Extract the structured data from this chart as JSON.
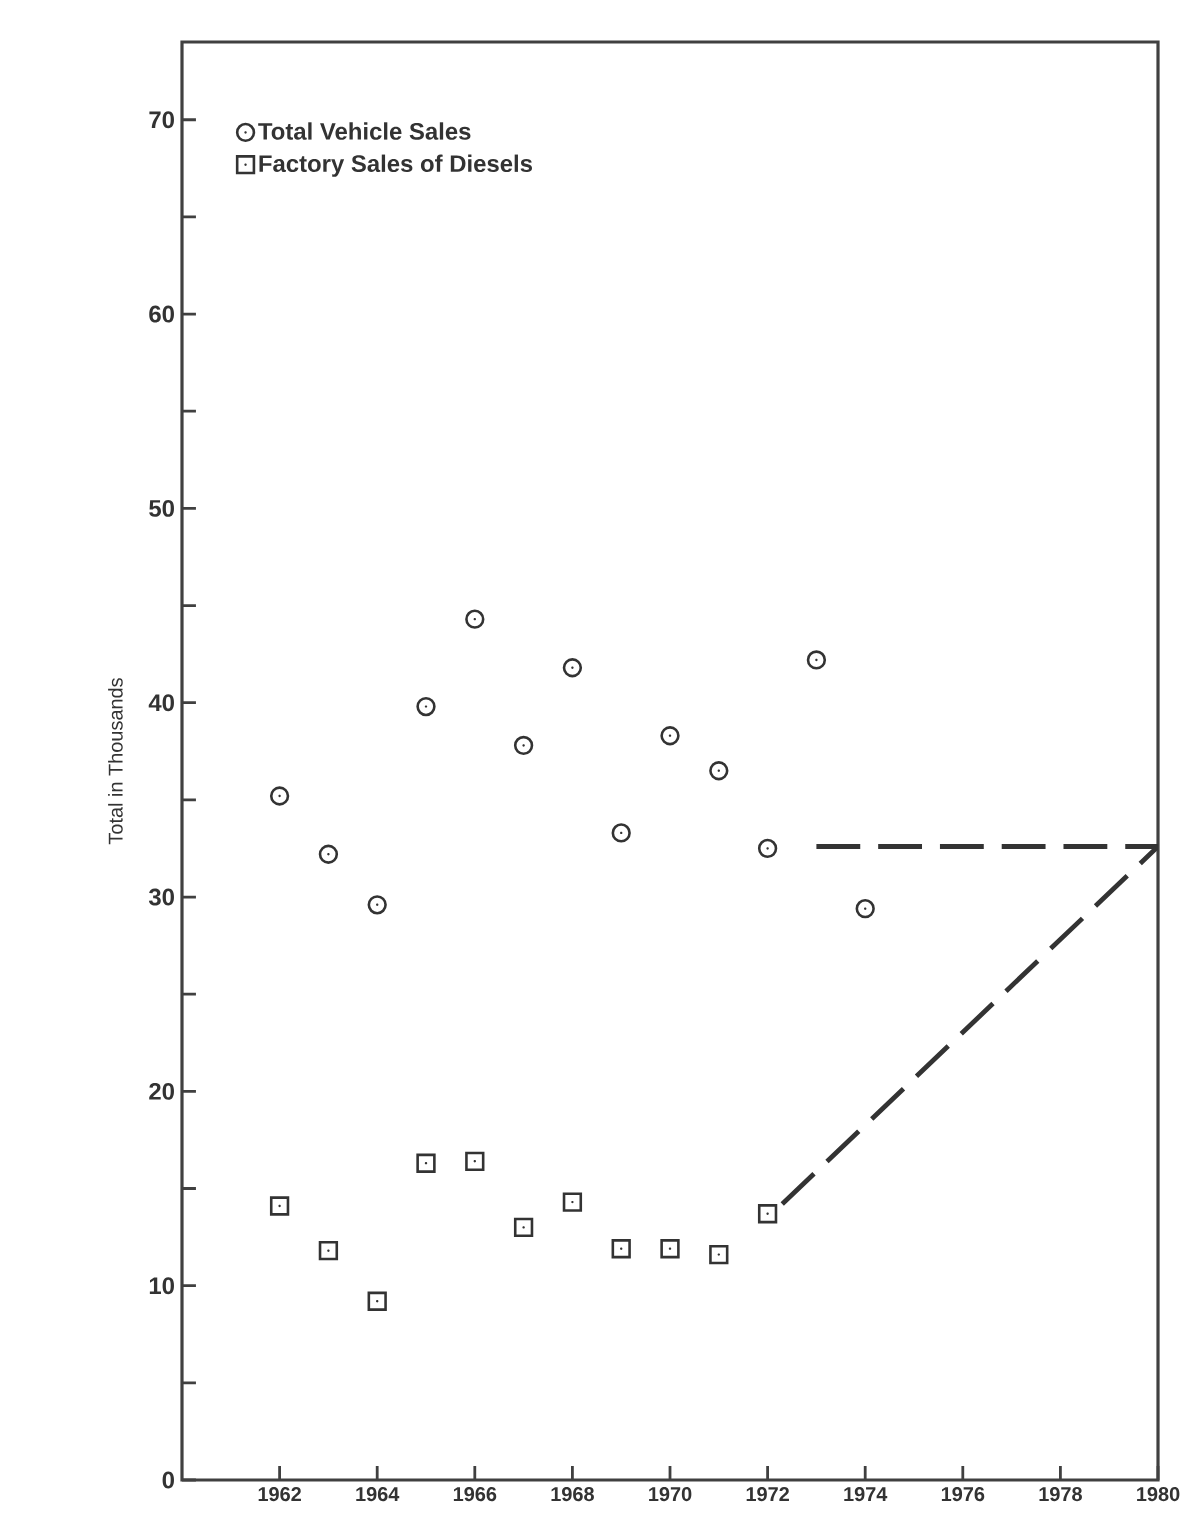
{
  "chart_data": {
    "type": "scatter",
    "ylabel": "Total in Thousands",
    "xlim": [
      1960,
      1980
    ],
    "xticks": [
      1962,
      1964,
      1966,
      1968,
      1970,
      1972,
      1974,
      1976,
      1978,
      1980
    ],
    "ylim": [
      0,
      74
    ],
    "yticks": [
      0,
      {
        "value": 5,
        "label": null
      },
      10,
      {
        "value": 15,
        "label": null
      },
      20,
      {
        "value": 25,
        "label": null
      },
      30,
      {
        "value": 35,
        "label": null
      },
      40,
      {
        "value": 45,
        "label": null
      },
      50,
      {
        "value": 55,
        "label": null
      },
      60,
      {
        "value": 65,
        "label": null
      },
      70
    ],
    "grid": false,
    "legend": "top left",
    "series": [
      {
        "name": "Total Vehicle Sales",
        "color": "#333333",
        "marker": "circle",
        "x": [
          1962,
          1963,
          1964,
          1965,
          1966,
          1967,
          1968,
          1969,
          1970,
          1971,
          1972,
          1973,
          1974
        ],
        "values": [
          35.2,
          32.2,
          29.6,
          39.8,
          44.3,
          37.8,
          41.8,
          33.3,
          38.3,
          36.5,
          32.5,
          42.2,
          29.4
        ]
      },
      {
        "name": "Factory Sales of Diesels",
        "color": "#333333",
        "marker": "square",
        "x": [
          1962,
          1963,
          1964,
          1965,
          1966,
          1967,
          1968,
          1969,
          1970,
          1971,
          1972
        ],
        "values": [
          14.1,
          11.8,
          9.2,
          16.3,
          16.4,
          13.0,
          14.3,
          11.9,
          11.9,
          11.6,
          13.7
        ]
      },
      {
        "type": "line",
        "color": "#333333",
        "marker": "none",
        "line_style": "dashed",
        "x": [
          1973,
          1980
        ],
        "values": [
          32.6,
          32.6
        ]
      },
      {
        "type": "line",
        "color": "#333333",
        "marker": "none",
        "line_style": "dashed",
        "x": [
          1972.3,
          1980
        ],
        "values": [
          14.2,
          32.6
        ]
      }
    ]
  }
}
